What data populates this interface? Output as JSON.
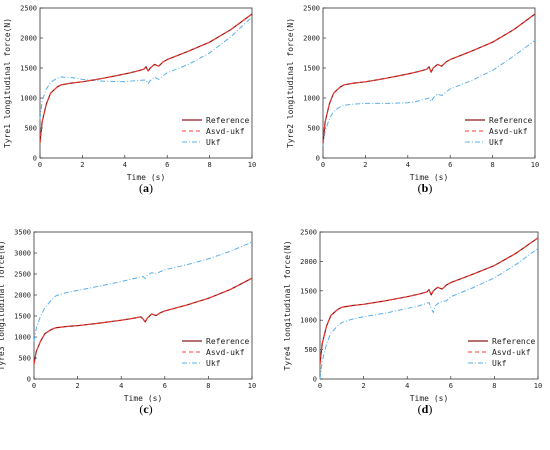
{
  "colors": {
    "reference": "#8b1a1a",
    "asvd": "#ff3b30",
    "ukf": "#5ab0ea"
  },
  "chart_data": [
    {
      "type": "line",
      "caption_text": "a",
      "xlabel": "Time (s)",
      "ylabel": "Tyre1 longitudinal force(N)",
      "xlim": [
        0,
        10
      ],
      "ylim": [
        0,
        2500
      ],
      "xticks": [
        0,
        2,
        4,
        6,
        8,
        10
      ],
      "yticks": [
        0,
        500,
        1000,
        1500,
        2000,
        2500
      ],
      "legend_position": "bottom-right",
      "series": [
        {
          "name": "Reference",
          "x": [
            0,
            0.1,
            0.3,
            0.5,
            0.8,
            1,
            1.5,
            2,
            3,
            4,
            4.5,
            4.9,
            5,
            5.1,
            5.2,
            5.4,
            5.6,
            5.8,
            6,
            7,
            8,
            9,
            10
          ],
          "y": [
            250,
            600,
            900,
            1080,
            1180,
            1220,
            1250,
            1270,
            1330,
            1400,
            1440,
            1480,
            1520,
            1450,
            1500,
            1560,
            1530,
            1600,
            1640,
            1780,
            1930,
            2140,
            2400
          ]
        },
        {
          "name": "Asvd-ukf",
          "x": [
            0,
            0.1,
            0.3,
            0.5,
            0.8,
            1,
            1.5,
            2,
            3,
            4,
            4.5,
            4.9,
            5,
            5.1,
            5.2,
            5.4,
            5.6,
            5.8,
            6,
            7,
            8,
            9,
            10
          ],
          "y": [
            250,
            600,
            900,
            1080,
            1180,
            1220,
            1250,
            1270,
            1330,
            1400,
            1440,
            1480,
            1520,
            1450,
            1500,
            1560,
            1530,
            1600,
            1640,
            1780,
            1930,
            2140,
            2400
          ]
        },
        {
          "name": "Ukf",
          "x": [
            0,
            0.1,
            0.3,
            0.5,
            0.8,
            1,
            1.5,
            2,
            3,
            4,
            4.5,
            5,
            5.1,
            5.2,
            5.4,
            5.6,
            5.8,
            6,
            7,
            8,
            9,
            10
          ],
          "y": [
            650,
            950,
            1150,
            1260,
            1330,
            1350,
            1340,
            1310,
            1280,
            1270,
            1290,
            1300,
            1240,
            1290,
            1350,
            1310,
            1370,
            1420,
            1560,
            1750,
            2020,
            2350
          ]
        }
      ]
    },
    {
      "type": "line",
      "caption_text": "b",
      "xlabel": "Time (s)",
      "ylabel": "Tyre2 longitudinal force(N)",
      "xlim": [
        0,
        10
      ],
      "ylim": [
        0,
        2500
      ],
      "xticks": [
        0,
        2,
        4,
        6,
        8,
        10
      ],
      "yticks": [
        0,
        500,
        1000,
        1500,
        2000,
        2500
      ],
      "legend_position": "bottom-right",
      "series": [
        {
          "name": "Reference",
          "x": [
            0,
            0.1,
            0.3,
            0.5,
            0.8,
            1,
            1.5,
            2,
            3,
            4,
            4.5,
            4.9,
            5,
            5.1,
            5.2,
            5.4,
            5.6,
            5.8,
            6,
            7,
            8,
            9,
            10
          ],
          "y": [
            250,
            600,
            900,
            1080,
            1180,
            1220,
            1250,
            1270,
            1330,
            1400,
            1440,
            1480,
            1520,
            1430,
            1500,
            1560,
            1530,
            1600,
            1640,
            1780,
            1930,
            2140,
            2400
          ]
        },
        {
          "name": "Asvd-ukf",
          "x": [
            0,
            0.1,
            0.3,
            0.5,
            0.8,
            1,
            1.5,
            2,
            3,
            4,
            4.5,
            4.9,
            5,
            5.1,
            5.2,
            5.4,
            5.6,
            5.8,
            6,
            7,
            8,
            9,
            10
          ],
          "y": [
            250,
            600,
            900,
            1080,
            1180,
            1220,
            1250,
            1270,
            1330,
            1400,
            1440,
            1480,
            1520,
            1430,
            1500,
            1560,
            1530,
            1600,
            1640,
            1780,
            1930,
            2140,
            2400
          ]
        },
        {
          "name": "Ukf",
          "x": [
            0,
            0.1,
            0.3,
            0.5,
            0.8,
            1,
            1.5,
            2,
            3,
            4,
            4.5,
            5,
            5.1,
            5.2,
            5.4,
            5.6,
            5.8,
            6,
            7,
            8,
            9,
            10
          ],
          "y": [
            200,
            450,
            650,
            780,
            850,
            880,
            900,
            910,
            910,
            920,
            950,
            1000,
            940,
            1000,
            1070,
            1040,
            1100,
            1150,
            1290,
            1460,
            1700,
            1960
          ]
        }
      ]
    },
    {
      "type": "line",
      "caption_text": "c",
      "xlabel": "Time (s)",
      "ylabel": "Tyre3 longitudinal force(N)",
      "xlim": [
        0,
        10
      ],
      "ylim": [
        0,
        3500
      ],
      "xticks": [
        0,
        2,
        4,
        6,
        8,
        10
      ],
      "yticks": [
        0,
        500,
        1000,
        1500,
        2000,
        2500,
        3000,
        3500
      ],
      "legend_position": "bottom-right",
      "series": [
        {
          "name": "Reference",
          "x": [
            0,
            0.1,
            0.3,
            0.5,
            0.8,
            1,
            1.5,
            2,
            3,
            4,
            4.5,
            4.9,
            5,
            5.1,
            5.2,
            5.4,
            5.6,
            5.8,
            6,
            7,
            8,
            9,
            10
          ],
          "y": [
            350,
            650,
            900,
            1080,
            1180,
            1220,
            1250,
            1270,
            1330,
            1400,
            1440,
            1480,
            1430,
            1360,
            1450,
            1550,
            1510,
            1580,
            1620,
            1760,
            1920,
            2130,
            2400
          ]
        },
        {
          "name": "Asvd-ukf",
          "x": [
            0,
            0.1,
            0.3,
            0.5,
            0.8,
            1,
            1.5,
            2,
            3,
            4,
            4.5,
            4.9,
            5,
            5.1,
            5.2,
            5.4,
            5.6,
            5.8,
            6,
            7,
            8,
            9,
            10
          ],
          "y": [
            350,
            650,
            900,
            1080,
            1180,
            1220,
            1250,
            1270,
            1330,
            1400,
            1440,
            1480,
            1430,
            1360,
            1450,
            1550,
            1510,
            1580,
            1620,
            1760,
            1920,
            2130,
            2400
          ]
        },
        {
          "name": "Ukf",
          "x": [
            0,
            0.1,
            0.3,
            0.5,
            0.8,
            1,
            1.5,
            2,
            3,
            4,
            4.5,
            5,
            5.1,
            5.2,
            5.4,
            5.6,
            5.8,
            6,
            7,
            8,
            9,
            10
          ],
          "y": [
            900,
            1200,
            1500,
            1700,
            1880,
            1980,
            2060,
            2110,
            2210,
            2320,
            2380,
            2440,
            2390,
            2470,
            2530,
            2500,
            2560,
            2600,
            2720,
            2860,
            3040,
            3260
          ]
        }
      ]
    },
    {
      "type": "line",
      "caption_text": "d",
      "xlabel": "Time (s)",
      "ylabel": "Tyre4 longitudinal force(N)",
      "xlim": [
        0,
        10
      ],
      "ylim": [
        0,
        2500
      ],
      "xticks": [
        0,
        2,
        4,
        6,
        8,
        10
      ],
      "yticks": [
        0,
        500,
        1000,
        1500,
        2000,
        2500
      ],
      "legend_position": "bottom-right",
      "series": [
        {
          "name": "Reference",
          "x": [
            0,
            0.1,
            0.3,
            0.5,
            0.8,
            1,
            1.5,
            2,
            3,
            4,
            4.5,
            4.9,
            5,
            5.1,
            5.2,
            5.4,
            5.6,
            5.8,
            6,
            7,
            8,
            9,
            10
          ],
          "y": [
            250,
            600,
            900,
            1080,
            1180,
            1220,
            1250,
            1270,
            1330,
            1400,
            1440,
            1480,
            1520,
            1430,
            1500,
            1560,
            1530,
            1600,
            1640,
            1780,
            1930,
            2140,
            2400
          ]
        },
        {
          "name": "Asvd-ukf",
          "x": [
            0,
            0.1,
            0.3,
            0.5,
            0.8,
            1,
            1.5,
            2,
            3,
            4,
            4.5,
            4.9,
            5,
            5.1,
            5.2,
            5.4,
            5.6,
            5.8,
            6,
            7,
            8,
            9,
            10
          ],
          "y": [
            250,
            600,
            900,
            1080,
            1180,
            1220,
            1250,
            1270,
            1330,
            1400,
            1440,
            1480,
            1520,
            1430,
            1500,
            1560,
            1530,
            1600,
            1640,
            1780,
            1930,
            2140,
            2400
          ]
        },
        {
          "name": "Ukf",
          "x": [
            0,
            0.1,
            0.3,
            0.5,
            0.8,
            1,
            1.5,
            2,
            3,
            4,
            4.5,
            5,
            5.1,
            5.2,
            5.3,
            5.5,
            5.8,
            6,
            7,
            8,
            9,
            10
          ],
          "y": [
            0,
            300,
            600,
            780,
            900,
            960,
            1020,
            1060,
            1120,
            1200,
            1240,
            1300,
            1200,
            1130,
            1250,
            1310,
            1330,
            1400,
            1550,
            1720,
            1950,
            2220
          ]
        }
      ]
    }
  ]
}
